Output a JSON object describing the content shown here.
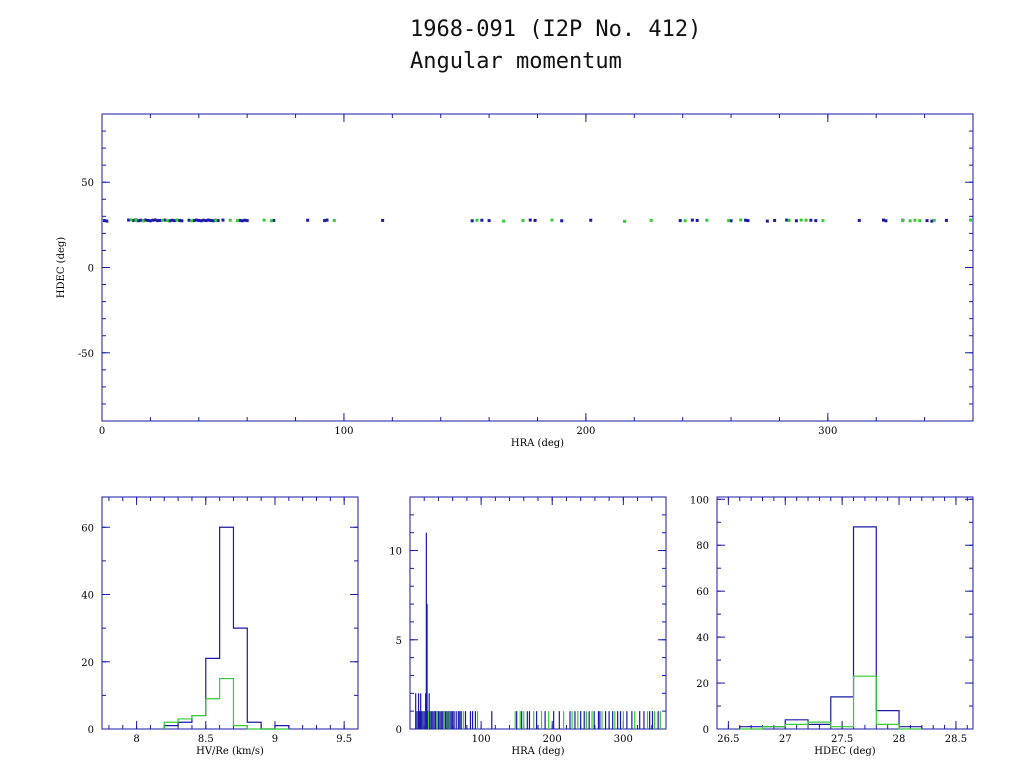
{
  "title": "1968-091 (I2P No. 412)",
  "subtitle": "Angular momentum",
  "colors": {
    "blue": "#1a1aa6",
    "green": "#33cc33",
    "frame": "#1a1aa6"
  },
  "chart_data": [
    {
      "type": "scatter",
      "xlabel": "HRA (deg)",
      "ylabel": "HDEC (deg)",
      "xlim": [
        0,
        360
      ],
      "ylim": [
        -90,
        90
      ],
      "xticks": [
        0,
        100,
        200,
        300
      ],
      "yticks": [
        -50,
        0,
        50
      ],
      "series": [
        {
          "color": "blue",
          "points": [
            [
              1,
              27.5
            ],
            [
              2,
              27.2
            ],
            [
              11,
              27.8
            ],
            [
              13,
              27.6
            ],
            [
              14,
              27.9
            ],
            [
              15,
              27.4
            ],
            [
              16,
              27.7
            ],
            [
              17,
              27.5
            ],
            [
              18,
              27.8
            ],
            [
              19,
              27.6
            ],
            [
              20,
              27.4
            ],
            [
              21,
              27.7
            ],
            [
              22,
              27.9
            ],
            [
              23,
              27.5
            ],
            [
              24,
              27.6
            ],
            [
              26,
              27.8
            ],
            [
              28,
              27.4
            ],
            [
              29,
              27.7
            ],
            [
              30,
              27.5
            ],
            [
              31,
              27.8
            ],
            [
              32,
              27.6
            ],
            [
              33,
              27.4
            ],
            [
              36,
              27.7
            ],
            [
              38,
              27.5
            ],
            [
              39,
              27.8
            ],
            [
              40,
              27.6
            ],
            [
              41,
              27.4
            ],
            [
              42,
              27.7
            ],
            [
              43,
              27.5
            ],
            [
              44,
              27.8
            ],
            [
              45,
              27.6
            ],
            [
              46,
              27.4
            ],
            [
              47,
              27.7
            ],
            [
              48,
              27.5
            ],
            [
              50,
              27.8
            ],
            [
              57,
              27.6
            ],
            [
              58,
              27.4
            ],
            [
              59,
              27.7
            ],
            [
              60,
              27.5
            ],
            [
              71,
              27.6
            ],
            [
              85,
              27.7
            ],
            [
              92,
              27.5
            ],
            [
              93,
              27.8
            ],
            [
              116,
              27.6
            ],
            [
              153,
              27.4
            ],
            [
              157,
              27.7
            ],
            [
              160,
              27.5
            ],
            [
              177,
              27.8
            ],
            [
              179,
              27.6
            ],
            [
              190,
              27.4
            ],
            [
              202,
              27.7
            ],
            [
              239,
              27.5
            ],
            [
              244,
              27.8
            ],
            [
              246,
              27.6
            ],
            [
              260,
              27.4
            ],
            [
              266,
              27.7
            ],
            [
              267,
              27.5
            ],
            [
              275,
              27.2
            ],
            [
              278,
              27.6
            ],
            [
              283,
              27.8
            ],
            [
              287,
              27.4
            ],
            [
              293,
              27.7
            ],
            [
              295,
              27.5
            ],
            [
              313,
              27.6
            ],
            [
              323,
              27.8
            ],
            [
              324,
              27.4
            ],
            [
              331,
              27.7
            ],
            [
              341,
              27.5
            ],
            [
              343,
              27.2
            ],
            [
              349,
              27.6
            ]
          ]
        },
        {
          "color": "green",
          "points": [
            [
              12,
              27.9
            ],
            [
              14,
              27.6
            ],
            [
              17,
              27.4
            ],
            [
              25,
              27.7
            ],
            [
              27,
              27.5
            ],
            [
              31,
              27.8
            ],
            [
              37,
              27.4
            ],
            [
              47,
              27.6
            ],
            [
              53,
              27.7
            ],
            [
              56,
              27.5
            ],
            [
              67,
              27.8
            ],
            [
              70,
              27.4
            ],
            [
              96,
              27.6
            ],
            [
              155,
              27.7
            ],
            [
              166,
              27.2
            ],
            [
              174,
              27.5
            ],
            [
              186,
              27.8
            ],
            [
              216,
              27.1
            ],
            [
              227,
              27.6
            ],
            [
              241,
              27.4
            ],
            [
              250,
              27.7
            ],
            [
              259,
              27.5
            ],
            [
              264,
              27.9
            ],
            [
              284,
              27.6
            ],
            [
              289,
              27.8
            ],
            [
              291,
              27.7
            ],
            [
              298,
              27.5
            ],
            [
              331,
              27.6
            ],
            [
              334,
              27.4
            ],
            [
              336,
              27.7
            ],
            [
              338,
              27.5
            ],
            [
              344,
              27.6
            ],
            [
              359,
              27.8
            ]
          ]
        }
      ]
    },
    {
      "type": "histogram",
      "xlabel": "HV/Re (km/s)",
      "xlim": [
        7.75,
        9.6
      ],
      "ylim": [
        0,
        69
      ],
      "xticks": [
        8,
        8.5,
        9,
        9.5
      ],
      "yticks": [
        0,
        20,
        40,
        60
      ],
      "bin_edges": [
        8.2,
        8.3,
        8.4,
        8.5,
        8.6,
        8.7,
        8.8,
        8.9,
        9.0,
        9.1
      ],
      "series": [
        {
          "color": "blue",
          "counts": [
            1,
            2,
            4,
            21,
            60,
            30,
            2,
            0,
            1
          ]
        },
        {
          "color": "green",
          "counts": [
            2,
            3,
            4,
            9,
            15,
            1,
            0,
            0,
            0
          ]
        }
      ]
    },
    {
      "type": "histogram",
      "xlabel": "HRA (deg)",
      "xlim": [
        0,
        360
      ],
      "ylim": [
        0,
        13
      ],
      "xticks": [
        100,
        200,
        300
      ],
      "yticks": [
        0,
        5,
        10
      ],
      "spikes": [
        {
          "color": "blue",
          "points": [
            [
              8,
              2
            ],
            [
              10,
              1
            ],
            [
              12,
              2
            ],
            [
              13,
              1
            ],
            [
              14,
              1
            ],
            [
              15,
              2
            ],
            [
              16,
              1
            ],
            [
              18,
              1
            ],
            [
              20,
              1
            ],
            [
              22,
              2
            ],
            [
              23,
              11
            ],
            [
              24,
              7
            ],
            [
              25,
              1
            ],
            [
              26,
              1
            ],
            [
              27,
              2
            ],
            [
              28,
              1
            ],
            [
              30,
              1
            ],
            [
              32,
              1
            ],
            [
              34,
              1
            ],
            [
              36,
              1
            ],
            [
              38,
              1
            ],
            [
              40,
              1
            ],
            [
              42,
              1
            ],
            [
              44,
              1
            ],
            [
              46,
              1
            ],
            [
              48,
              1
            ],
            [
              50,
              1
            ],
            [
              52,
              1
            ],
            [
              54,
              1
            ],
            [
              56,
              1
            ],
            [
              58,
              1
            ],
            [
              60,
              1
            ],
            [
              62,
              1
            ],
            [
              65,
              1
            ],
            [
              68,
              1
            ],
            [
              70,
              1
            ],
            [
              72,
              1
            ],
            [
              78,
              1
            ],
            [
              85,
              1
            ],
            [
              88,
              1
            ],
            [
              92,
              1
            ],
            [
              115,
              1
            ],
            [
              150,
              1
            ],
            [
              157,
              1
            ],
            [
              165,
              1
            ],
            [
              168,
              1
            ],
            [
              178,
              1
            ],
            [
              190,
              1
            ],
            [
              202,
              1
            ],
            [
              210,
              1
            ],
            [
              225,
              1
            ],
            [
              232,
              1
            ],
            [
              240,
              1
            ],
            [
              245,
              1
            ],
            [
              252,
              1
            ],
            [
              259,
              1
            ],
            [
              265,
              1
            ],
            [
              267,
              1
            ],
            [
              275,
              1
            ],
            [
              280,
              1
            ],
            [
              285,
              1
            ],
            [
              292,
              1
            ],
            [
              296,
              1
            ],
            [
              305,
              1
            ],
            [
              312,
              1
            ],
            [
              323,
              1
            ],
            [
              329,
              1
            ],
            [
              337,
              1
            ],
            [
              341,
              1
            ],
            [
              349,
              1
            ]
          ]
        },
        {
          "color": "green",
          "points": [
            [
              26,
              1
            ],
            [
              38,
              1
            ],
            [
              48,
              1
            ],
            [
              55,
              1
            ],
            [
              75,
              1
            ],
            [
              95,
              1
            ],
            [
              148,
              1
            ],
            [
              155,
              1
            ],
            [
              160,
              1
            ],
            [
              174,
              1
            ],
            [
              185,
              1
            ],
            [
              195,
              1
            ],
            [
              216,
              1
            ],
            [
              228,
              1
            ],
            [
              236,
              1
            ],
            [
              248,
              1
            ],
            [
              256,
              1
            ],
            [
              270,
              1
            ],
            [
              288,
              1
            ],
            [
              300,
              1
            ],
            [
              316,
              1
            ],
            [
              334,
              1
            ],
            [
              344,
              1
            ],
            [
              352,
              1
            ]
          ]
        }
      ]
    },
    {
      "type": "histogram",
      "xlabel": "HDEC (deg)",
      "xlim": [
        26.4,
        28.65
      ],
      "ylim": [
        0,
        101
      ],
      "xticks": [
        26.5,
        27,
        27.5,
        28,
        28.5
      ],
      "yticks": [
        0,
        20,
        40,
        60,
        80,
        100
      ],
      "bin_edges": [
        26.6,
        26.8,
        27.0,
        27.2,
        27.4,
        27.6,
        27.8,
        28.0,
        28.2
      ],
      "series": [
        {
          "color": "blue",
          "counts": [
            1,
            1,
            4,
            2,
            14,
            88,
            8,
            1
          ]
        },
        {
          "color": "green",
          "counts": [
            0,
            1,
            2,
            3,
            1,
            23,
            2,
            0
          ]
        }
      ]
    }
  ]
}
